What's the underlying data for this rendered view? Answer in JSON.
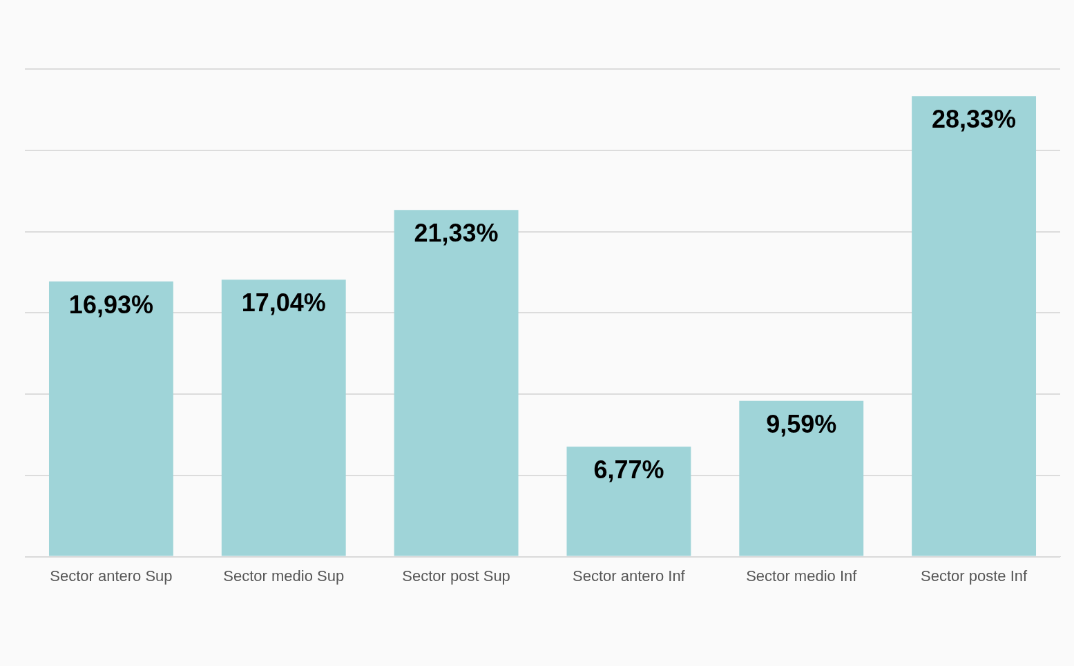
{
  "chart_data": {
    "type": "bar",
    "categories": [
      "Sector antero Sup",
      "Sector medio Sup",
      "Sector post Sup",
      "Sector antero Inf",
      "Sector medio Inf",
      "Sector poste Inf"
    ],
    "values": [
      16.93,
      17.04,
      21.33,
      6.77,
      9.59,
      28.33
    ],
    "value_labels": [
      "16,93%",
      "17,04%",
      "21,33%",
      "6,77%",
      "9,59%",
      "28,33%"
    ],
    "color": "#9fd4d8",
    "ylim": [
      0,
      30
    ],
    "yticks": [
      {
        "value": 0,
        "label": null
      },
      {
        "value": 5,
        "label": null
      },
      {
        "value": 10,
        "label": null
      },
      {
        "value": 15,
        "label": null
      },
      {
        "value": 20,
        "label": null
      },
      {
        "value": 25,
        "label": null
      },
      {
        "value": 30,
        "label": null
      }
    ],
    "grid": "y",
    "tick_labels": "x",
    "legend": false
  }
}
